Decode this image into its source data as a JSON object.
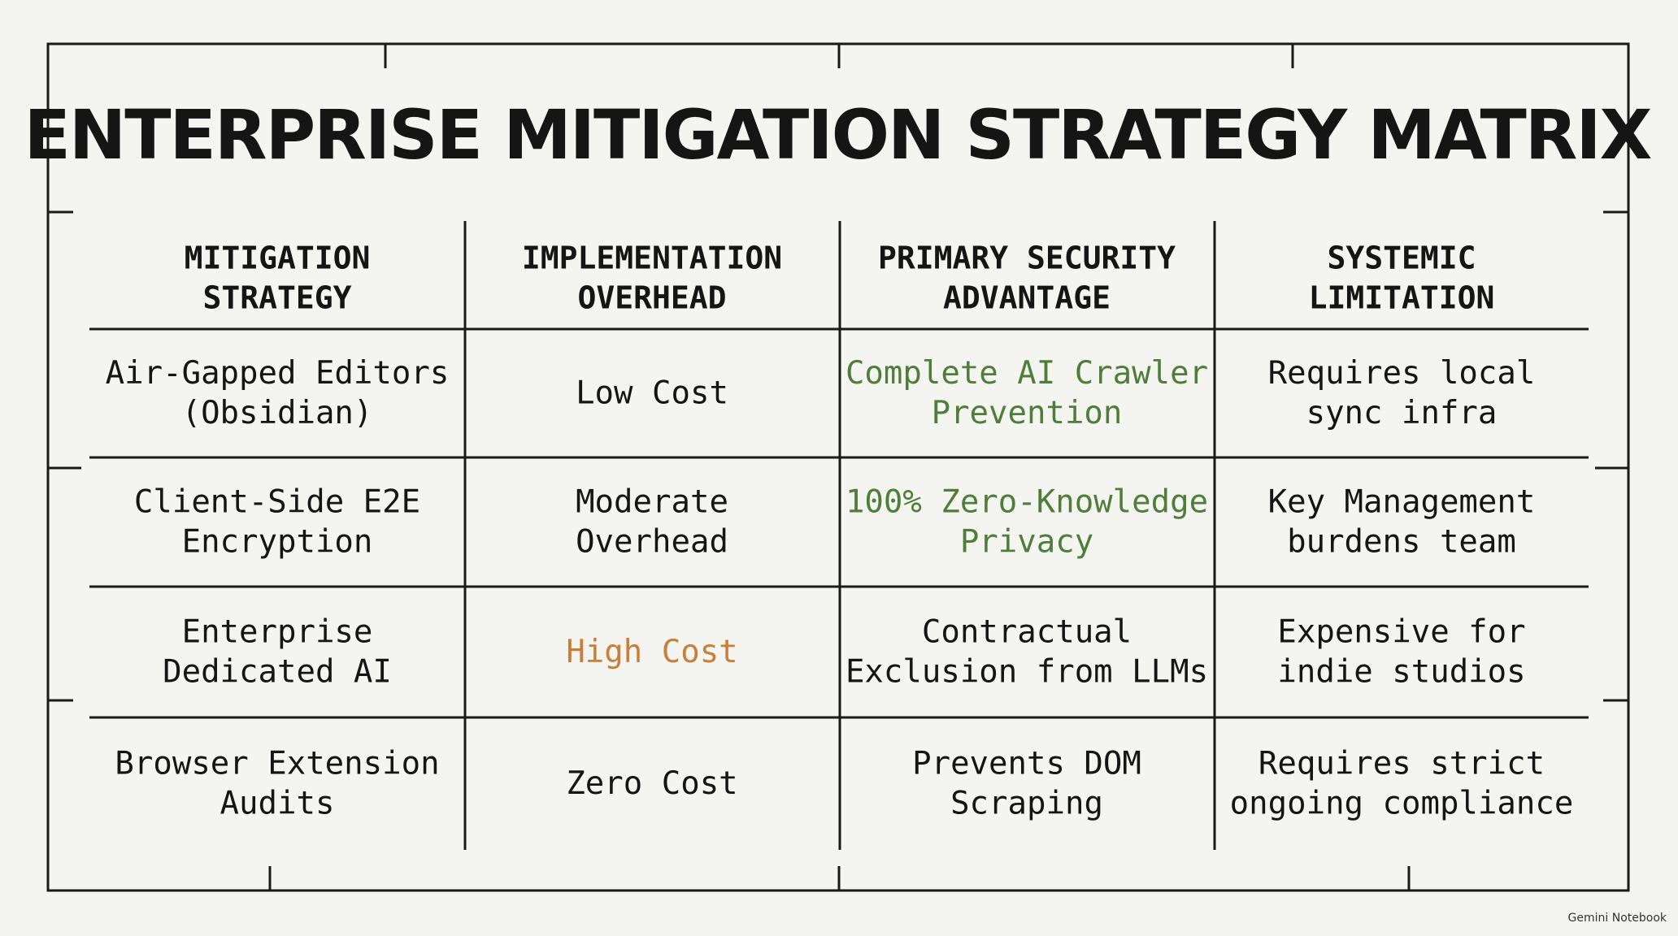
{
  "title": "ENTERPRISE MITIGATION STRATEGY MATRIX",
  "table": {
    "headers": [
      {
        "lines": [
          "MITIGATION",
          "STRATEGY"
        ]
      },
      {
        "lines": [
          "IMPLEMENTATION",
          "OVERHEAD"
        ]
      },
      {
        "lines": [
          "PRIMARY SECURITY",
          "ADVANTAGE"
        ]
      },
      {
        "lines": [
          "SYSTEMIC",
          "LIMITATION"
        ]
      }
    ],
    "rows": [
      [
        {
          "lines": [
            "Air-Gapped Editors",
            "(Obsidian)"
          ]
        },
        {
          "lines": [
            "Low Cost"
          ]
        },
        {
          "lines": [
            "Complete AI Crawler",
            "Prevention"
          ],
          "color": "#4f7d3a"
        },
        {
          "lines": [
            "Requires local",
            "sync infra"
          ]
        }
      ],
      [
        {
          "lines": [
            "Client-Side E2E",
            "Encryption"
          ]
        },
        {
          "lines": [
            "Moderate",
            "Overhead"
          ]
        },
        {
          "lines": [
            "100% Zero-Knowledge",
            "Privacy"
          ],
          "color": "#4f7d3a"
        },
        {
          "lines": [
            "Key Management",
            "burdens team"
          ]
        }
      ],
      [
        {
          "lines": [
            "Enterprise",
            "Dedicated AI"
          ]
        },
        {
          "lines": [
            "High Cost"
          ],
          "color": "#c97f3a"
        },
        {
          "lines": [
            "Contractual",
            "Exclusion from LLMs"
          ]
        },
        {
          "lines": [
            "Expensive for",
            "indie studios"
          ]
        }
      ],
      [
        {
          "lines": [
            "Browser Extension",
            "Audits"
          ]
        },
        {
          "lines": [
            "Zero Cost"
          ]
        },
        {
          "lines": [
            "Prevents DOM",
            "Scraping"
          ]
        },
        {
          "lines": [
            "Requires strict",
            "ongoing compliance"
          ]
        }
      ]
    ]
  },
  "watermark": "Gemini Notebook"
}
